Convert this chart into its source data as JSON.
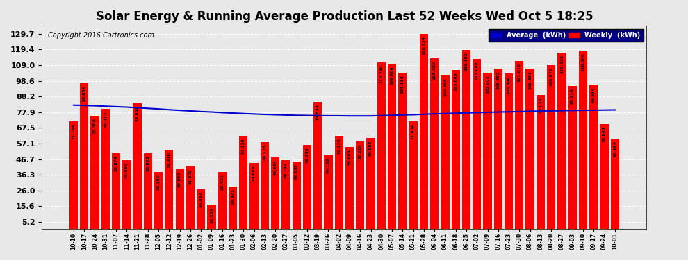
{
  "title": "Solar Energy & Running Average Production Last 52 Weeks Wed Oct 5 18:25",
  "copyright": "Copyright 2016 Cartronics.com",
  "bar_color": "#ff0000",
  "avg_line_color": "#0000cc",
  "background_color": "#e8e8e8",
  "plot_bg_color": "#e8e8e8",
  "yticks": [
    5.2,
    15.6,
    26.0,
    36.3,
    46.7,
    57.1,
    67.5,
    77.9,
    88.2,
    98.6,
    109.0,
    119.4,
    129.7
  ],
  "ylim": [
    0,
    135
  ],
  "legend_avg_color": "#0000cc",
  "legend_weekly_color": "#ff0000",
  "categories": [
    "10-10",
    "10-17",
    "10-24",
    "10-31",
    "11-07",
    "11-14",
    "11-21",
    "11-28",
    "12-05",
    "12-12",
    "12-19",
    "12-26",
    "01-02",
    "01-09",
    "01-16",
    "01-23",
    "01-30",
    "02-06",
    "02-13",
    "02-20",
    "02-27",
    "03-05",
    "03-12",
    "03-19",
    "03-26",
    "04-02",
    "04-09",
    "04-16",
    "04-23",
    "04-30",
    "05-07",
    "05-14",
    "05-21",
    "05-28",
    "06-04",
    "06-11",
    "06-18",
    "06-25",
    "07-02",
    "07-09",
    "07-16",
    "07-23",
    "07-30",
    "08-06",
    "08-13",
    "08-20",
    "08-27",
    "09-03",
    "09-10",
    "09-17",
    "09-24",
    "10-01"
  ],
  "weekly_values": [
    71.794,
    96.854,
    75.704,
    80.102,
    50.874,
    46.0,
    83.952,
    50.825,
    38.392,
    53.21,
    39.962,
    41.902,
    26.932,
    16.534,
    38.423,
    28.873,
    62.12,
    44.064,
    58.173,
    48.024,
    46.19,
    45.136,
    56.15,
    84.844,
    49.128,
    62.128,
    55.005,
    58.31,
    60.905,
    110.79,
    109.906,
    104.118,
    71.806,
    129.734,
    113.402,
    102.358,
    105.663,
    119.102,
    113.098,
    103.902,
    106.592,
    103.506,
    111.816,
    106.887,
    89.036,
    108.875,
    117.426,
    95.314,
    118.606,
    95.914,
    70.04,
    60.164
  ],
  "avg_values": [
    82.5,
    82.3,
    82.1,
    81.8,
    81.5,
    81.2,
    80.8,
    80.4,
    80.0,
    79.5,
    79.1,
    78.7,
    78.3,
    78.0,
    77.6,
    77.3,
    77.0,
    76.7,
    76.4,
    76.2,
    76.0,
    75.8,
    75.7,
    75.6,
    75.5,
    75.5,
    75.4,
    75.4,
    75.4,
    75.6,
    75.8,
    76.1,
    76.2,
    76.5,
    76.8,
    77.0,
    77.2,
    77.4,
    77.6,
    77.8,
    78.0,
    78.1,
    78.3,
    78.5,
    78.6,
    78.7,
    78.9,
    79.0,
    79.1,
    79.2,
    79.3,
    79.4
  ]
}
